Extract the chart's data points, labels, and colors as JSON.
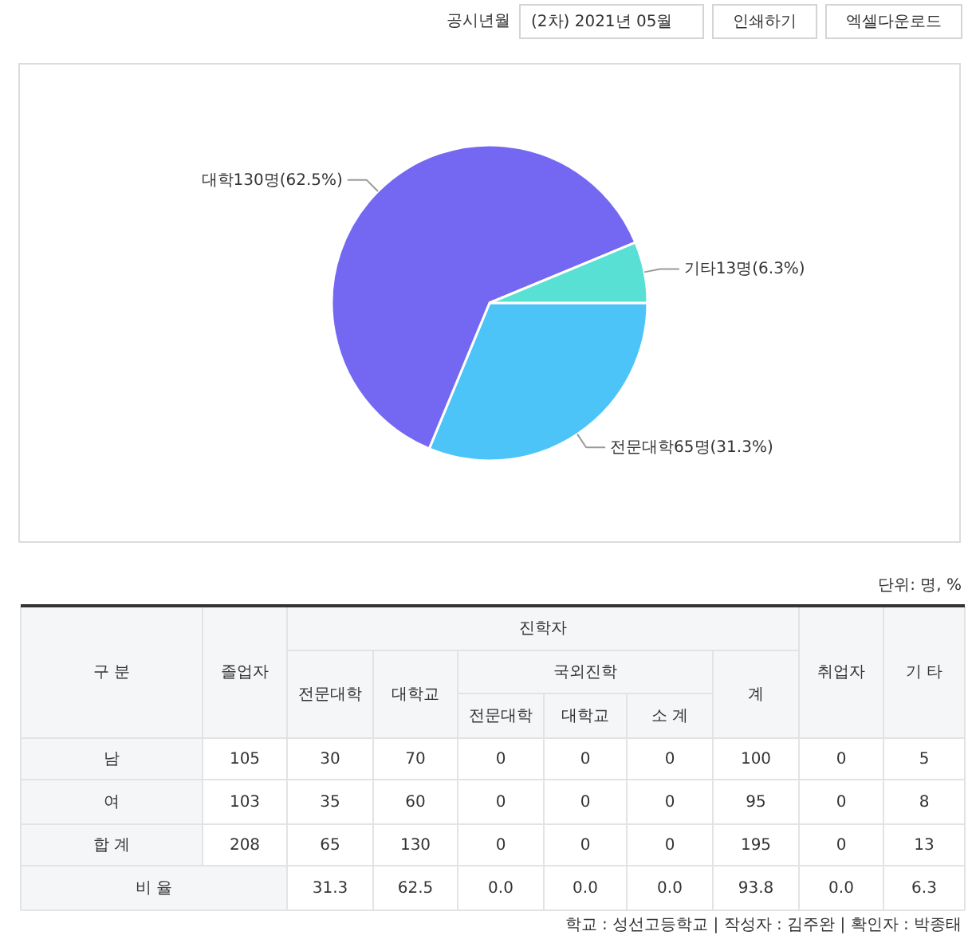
{
  "chart_data": [
    {
      "type": "other",
      "annotations": [
        "공시년월",
        "(2차) 2021년 05월",
        "인쇄하기",
        "엑셀다운로드"
      ]
    },
    {
      "type": "pie",
      "categories": [
        "전문대학",
        "대학",
        "기타"
      ],
      "values": [
        65,
        130,
        13
      ],
      "colors": [
        "#4dc4f8",
        "#7468f2",
        "#58e0d5"
      ],
      "value_labels": [
        "65명(31.3%)",
        "130명(62.5%)",
        "13명(6.3%)"
      ]
    },
    {
      "type": "other",
      "annotations": [
        "단위: 명, %",
        "구 분",
        "졸업자",
        "진학자",
        "취업자",
        "기 타",
        "전문대학",
        "대학교",
        "국외진학",
        "계",
        "전문대학",
        "대학교",
        "소 계",
        "남",
        "105",
        "30",
        "70",
        "0",
        "0",
        "0",
        "100",
        "0",
        "5",
        "여",
        "103",
        "35",
        "60",
        "0",
        "0",
        "0",
        "95",
        "0",
        "8",
        "합 계",
        "208",
        "65",
        "130",
        "0",
        "0",
        "0",
        "195",
        "0",
        "13",
        "비 율",
        "31.3",
        "62.5",
        "0.0",
        "0.0",
        "0.0",
        "93.8",
        "0.0",
        "6.3",
        "학교 : 성선고등학교 | 작성자 : 김주완 | 확인자 : 박종태"
      ]
    }
  ]
}
